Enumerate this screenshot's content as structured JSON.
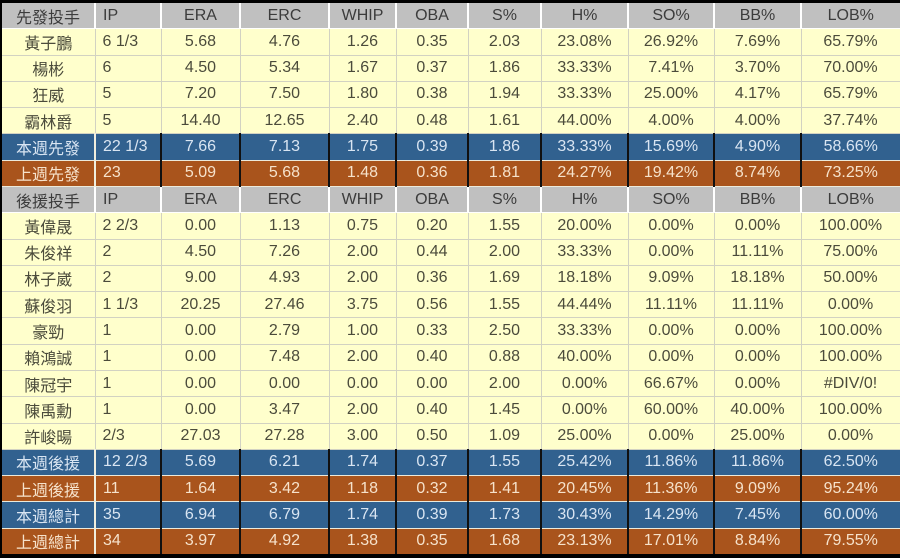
{
  "colors": {
    "data_row_yellow": "#ffffcc",
    "header_gray": "#c0c0c0",
    "this_week_blue": "#31618f",
    "last_week_brown": "#a9541c"
  },
  "chart_data": {
    "type": "table",
    "columns": [
      "先發投手",
      "IP",
      "ERA",
      "ERC",
      "WHIP",
      "OBA",
      "S%",
      "H%",
      "SO%",
      "BB%",
      "LOB%"
    ],
    "rows": [
      {
        "style": "header",
        "cells": [
          "先發投手",
          "IP",
          "ERA",
          "ERC",
          "WHIP",
          "OBA",
          "S%",
          "H%",
          "SO%",
          "BB%",
          "LOB%"
        ]
      },
      {
        "style": "data",
        "cells": [
          "黃子鵬",
          "6 1/3",
          "5.68",
          "4.76",
          "1.26",
          "0.35",
          "2.03",
          "23.08%",
          "26.92%",
          "7.69%",
          "65.79%"
        ]
      },
      {
        "style": "data",
        "cells": [
          "楊彬",
          "6",
          "4.50",
          "5.34",
          "1.67",
          "0.37",
          "1.86",
          "33.33%",
          "7.41%",
          "3.70%",
          "70.00%"
        ]
      },
      {
        "style": "data",
        "cells": [
          "狂威",
          "5",
          "7.20",
          "7.50",
          "1.80",
          "0.38",
          "1.94",
          "33.33%",
          "25.00%",
          "4.17%",
          "65.79%"
        ]
      },
      {
        "style": "data",
        "cells": [
          "霸林爵",
          "5",
          "14.40",
          "12.65",
          "2.40",
          "0.48",
          "1.61",
          "44.00%",
          "4.00%",
          "4.00%",
          "37.74%"
        ]
      },
      {
        "style": "blue",
        "cells": [
          "本週先發",
          "22 1/3",
          "7.66",
          "7.13",
          "1.75",
          "0.39",
          "1.86",
          "33.33%",
          "15.69%",
          "4.90%",
          "58.66%"
        ]
      },
      {
        "style": "brown",
        "cells": [
          "上週先發",
          "23",
          "5.09",
          "5.68",
          "1.48",
          "0.36",
          "1.81",
          "24.27%",
          "19.42%",
          "8.74%",
          "73.25%"
        ]
      },
      {
        "style": "header",
        "cells": [
          "後援投手",
          "IP",
          "ERA",
          "ERC",
          "WHIP",
          "OBA",
          "S%",
          "H%",
          "SO%",
          "BB%",
          "LOB%"
        ]
      },
      {
        "style": "data",
        "cells": [
          "黃偉晟",
          "2 2/3",
          "0.00",
          "1.13",
          "0.75",
          "0.20",
          "1.55",
          "20.00%",
          "0.00%",
          "0.00%",
          "100.00%"
        ]
      },
      {
        "style": "data",
        "cells": [
          "朱俊祥",
          "2",
          "4.50",
          "7.26",
          "2.00",
          "0.44",
          "2.00",
          "33.33%",
          "0.00%",
          "11.11%",
          "75.00%"
        ]
      },
      {
        "style": "data",
        "cells": [
          "林子崴",
          "2",
          "9.00",
          "4.93",
          "2.00",
          "0.36",
          "1.69",
          "18.18%",
          "9.09%",
          "18.18%",
          "50.00%"
        ]
      },
      {
        "style": "data",
        "cells": [
          "蘇俊羽",
          "1 1/3",
          "20.25",
          "27.46",
          "3.75",
          "0.56",
          "1.55",
          "44.44%",
          "11.11%",
          "11.11%",
          "0.00%"
        ]
      },
      {
        "style": "data",
        "cells": [
          "豪勁",
          "1",
          "0.00",
          "2.79",
          "1.00",
          "0.33",
          "2.50",
          "33.33%",
          "0.00%",
          "0.00%",
          "100.00%"
        ]
      },
      {
        "style": "data",
        "cells": [
          "賴鴻誠",
          "1",
          "0.00",
          "7.48",
          "2.00",
          "0.40",
          "0.88",
          "40.00%",
          "0.00%",
          "0.00%",
          "100.00%"
        ]
      },
      {
        "style": "data",
        "cells": [
          "陳冠宇",
          "1",
          "0.00",
          "0.00",
          "0.00",
          "0.00",
          "2.00",
          "0.00%",
          "66.67%",
          "0.00%",
          "#DIV/0!"
        ]
      },
      {
        "style": "data",
        "cells": [
          "陳禹勳",
          "1",
          "0.00",
          "3.47",
          "2.00",
          "0.40",
          "1.45",
          "0.00%",
          "60.00%",
          "40.00%",
          "100.00%"
        ]
      },
      {
        "style": "data",
        "cells": [
          "許峻暘",
          "2/3",
          "27.03",
          "27.28",
          "3.00",
          "0.50",
          "1.09",
          "25.00%",
          "0.00%",
          "25.00%",
          "0.00%"
        ]
      },
      {
        "style": "blue",
        "cells": [
          "本週後援",
          "12 2/3",
          "5.69",
          "6.21",
          "1.74",
          "0.37",
          "1.55",
          "25.42%",
          "11.86%",
          "11.86%",
          "62.50%"
        ]
      },
      {
        "style": "brown",
        "cells": [
          "上週後援",
          "11",
          "1.64",
          "3.42",
          "1.18",
          "0.32",
          "1.41",
          "20.45%",
          "11.36%",
          "9.09%",
          "95.24%"
        ]
      },
      {
        "style": "blue",
        "cells": [
          "本週總計",
          "35",
          "6.94",
          "6.79",
          "1.74",
          "0.39",
          "1.73",
          "30.43%",
          "14.29%",
          "7.45%",
          "60.00%"
        ]
      },
      {
        "style": "brown",
        "cells": [
          "上週總計",
          "34",
          "3.97",
          "4.92",
          "1.38",
          "0.35",
          "1.68",
          "23.13%",
          "17.01%",
          "8.84%",
          "79.55%"
        ]
      }
    ]
  }
}
